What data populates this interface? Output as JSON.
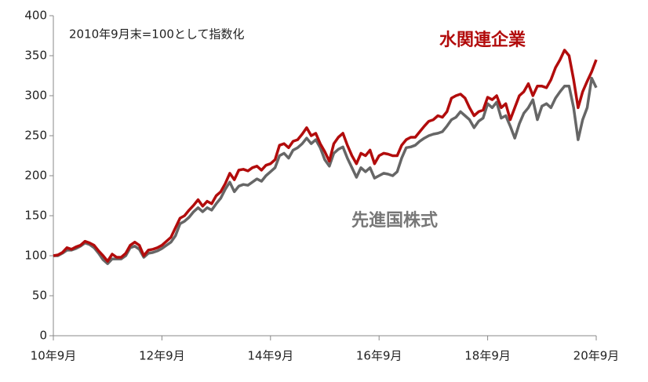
{
  "chart_data": {
    "type": "line",
    "annotation": "2010年9月末=100として指数化",
    "categories": [
      "10年9月",
      null,
      null,
      null,
      null,
      null,
      null,
      null,
      null,
      null,
      null,
      null,
      null,
      null,
      null,
      null,
      null,
      null,
      null,
      null,
      null,
      null,
      null,
      null,
      "12年9月",
      null,
      null,
      null,
      null,
      null,
      null,
      null,
      null,
      null,
      null,
      null,
      null,
      null,
      null,
      null,
      null,
      null,
      null,
      null,
      null,
      null,
      null,
      null,
      "14年9月",
      null,
      null,
      null,
      null,
      null,
      null,
      null,
      null,
      null,
      null,
      null,
      null,
      null,
      null,
      null,
      null,
      null,
      null,
      null,
      null,
      null,
      null,
      null,
      "16年9月",
      null,
      null,
      null,
      null,
      null,
      null,
      null,
      null,
      null,
      null,
      null,
      null,
      null,
      null,
      null,
      null,
      null,
      null,
      null,
      null,
      null,
      null,
      null,
      "18年9月",
      null,
      null,
      null,
      null,
      null,
      null,
      null,
      null,
      null,
      null,
      null,
      null,
      null,
      null,
      null,
      null,
      null,
      null,
      null,
      null,
      null,
      null,
      null,
      "20年9月"
    ],
    "series": [
      {
        "name": "水関連企業",
        "color": "#b20c0c",
        "values": [
          100,
          101,
          104,
          110,
          108,
          111,
          113,
          118,
          116,
          113,
          106,
          100,
          93,
          102,
          98,
          98,
          103,
          113,
          117,
          113,
          100,
          107,
          108,
          110,
          113,
          118,
          123,
          135,
          147,
          150,
          157,
          163,
          170,
          162,
          168,
          165,
          175,
          180,
          190,
          203,
          195,
          207,
          208,
          206,
          210,
          212,
          207,
          213,
          215,
          220,
          238,
          240,
          235,
          243,
          245,
          252,
          260,
          250,
          253,
          240,
          230,
          218,
          240,
          248,
          253,
          238,
          225,
          215,
          228,
          225,
          232,
          215,
          225,
          228,
          227,
          225,
          225,
          238,
          245,
          248,
          248,
          255,
          262,
          268,
          270,
          275,
          273,
          280,
          297,
          300,
          302,
          297,
          285,
          275,
          280,
          282,
          298,
          295,
          300,
          285,
          290,
          270,
          285,
          300,
          305,
          315,
          300,
          312,
          312,
          310,
          320,
          335,
          345,
          357,
          350,
          320,
          285,
          305,
          318,
          330,
          345
        ]
      },
      {
        "name": "先進国株式",
        "color": "#666666",
        "values": [
          100,
          100,
          103,
          107,
          107,
          109,
          112,
          116,
          114,
          110,
          103,
          95,
          90,
          96,
          96,
          96,
          100,
          110,
          112,
          108,
          98,
          103,
          104,
          106,
          109,
          113,
          117,
          125,
          140,
          143,
          148,
          155,
          160,
          155,
          160,
          157,
          165,
          172,
          183,
          192,
          180,
          187,
          189,
          188,
          192,
          196,
          193,
          200,
          205,
          210,
          225,
          228,
          222,
          232,
          235,
          240,
          247,
          240,
          245,
          235,
          220,
          212,
          228,
          233,
          236,
          222,
          210,
          198,
          210,
          205,
          210,
          197,
          200,
          203,
          202,
          200,
          205,
          222,
          235,
          236,
          238,
          243,
          247,
          250,
          252,
          253,
          255,
          262,
          270,
          273,
          280,
          275,
          270,
          260,
          268,
          272,
          290,
          285,
          292,
          272,
          275,
          262,
          247,
          265,
          278,
          285,
          295,
          270,
          287,
          290,
          285,
          297,
          305,
          312,
          312,
          285,
          245,
          270,
          285,
          322,
          310
        ]
      }
    ],
    "ylim": [
      0,
      400
    ],
    "yticks": [
      0,
      50,
      100,
      150,
      200,
      250,
      300,
      350,
      400
    ],
    "grid": false
  }
}
